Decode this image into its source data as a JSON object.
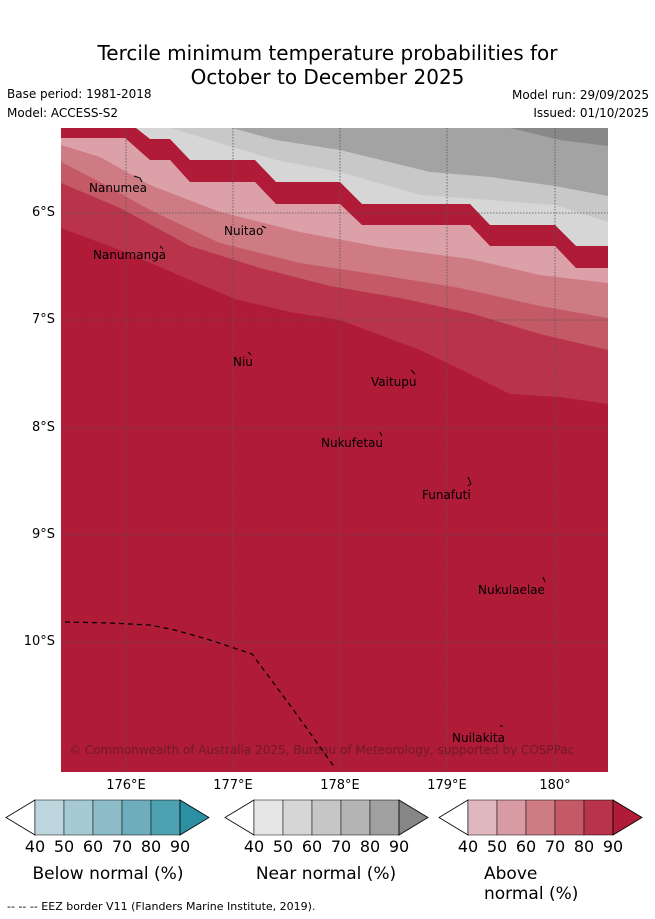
{
  "title": {
    "line1": "Tercile minimum temperature probabilities for",
    "line2": "October to December 2025"
  },
  "meta": {
    "base_period": "Base period: 1981-2018",
    "model": "Model: ACCESS-S2",
    "model_run": "Model run: 29/09/2025",
    "issued": "Issued: 01/10/2025"
  },
  "axes": {
    "y_labels": [
      "6°S",
      "7°S",
      "8°S",
      "9°S",
      "10°S"
    ],
    "x_labels": [
      "176°E",
      "177°E",
      "178°E",
      "179°E",
      "180°"
    ]
  },
  "places": [
    "Nanumea",
    "Nuitao",
    "Nanumanga",
    "Niu",
    "Vaitupu",
    "Nukufetau",
    "Funafuti",
    "Nukulaelae",
    "Nuilakita"
  ],
  "copyright": "© Commonwealth of Australia 2025, Bureau of Meteorology, supported by COSPPac",
  "colorbars": [
    {
      "label": "Below normal (%)",
      "ticks": [
        "40",
        "50",
        "60",
        "70",
        "80",
        "90"
      ],
      "colors": [
        "#ffffff",
        "#bdd6dd",
        "#a6cad2",
        "#8cbcc7",
        "#6eadbb",
        "#4da1b1",
        "#2c8fa2"
      ]
    },
    {
      "label": "Near normal (%)",
      "ticks": [
        "40",
        "50",
        "60",
        "70",
        "80",
        "90"
      ],
      "colors": [
        "#ffffff",
        "#e6e6e6",
        "#d6d6d6",
        "#c6c6c6",
        "#b4b4b4",
        "#a0a0a0",
        "#868686"
      ]
    },
    {
      "label": "Above normal (%)",
      "ticks": [
        "40",
        "50",
        "60",
        "70",
        "80",
        "90"
      ],
      "colors": [
        "#ffffff",
        "#e1b7bf",
        "#d89aa3",
        "#cf7b84",
        "#c55a67",
        "#b9344a",
        "#b01b38"
      ]
    }
  ],
  "footer": "--  --  -- EEZ border V11 (Flanders Marine Institute, 2019)."
}
